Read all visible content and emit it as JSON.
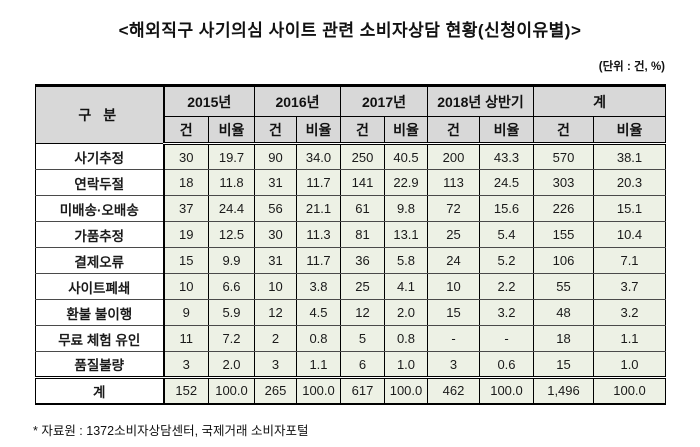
{
  "title": "<해외직구 사기의심 사이트 관련 소비자상담 현황(신청이유별)>",
  "unit_note": "(단위 : 건, %)",
  "footnote": "* 자료원 : 1372소비자상담센터, 국제거래 소비자포털",
  "table": {
    "corner_header": "구 분",
    "col_groups": [
      "2015년",
      "2016년",
      "2017년",
      "2018년 상반기",
      "계"
    ],
    "sub_headers": [
      "건",
      "비율"
    ],
    "rows": [
      {
        "label": "사기추정",
        "values": [
          "30",
          "19.7",
          "90",
          "34.0",
          "250",
          "40.5",
          "200",
          "43.3",
          "570",
          "38.1"
        ],
        "is_total": false
      },
      {
        "label": "연락두절",
        "values": [
          "18",
          "11.8",
          "31",
          "11.7",
          "141",
          "22.9",
          "113",
          "24.5",
          "303",
          "20.3"
        ],
        "is_total": false
      },
      {
        "label": "미배송·오배송",
        "values": [
          "37",
          "24.4",
          "56",
          "21.1",
          "61",
          "9.8",
          "72",
          "15.6",
          "226",
          "15.1"
        ],
        "is_total": false
      },
      {
        "label": "가품추정",
        "values": [
          "19",
          "12.5",
          "30",
          "11.3",
          "81",
          "13.1",
          "25",
          "5.4",
          "155",
          "10.4"
        ],
        "is_total": false
      },
      {
        "label": "결제오류",
        "values": [
          "15",
          "9.9",
          "31",
          "11.7",
          "36",
          "5.8",
          "24",
          "5.2",
          "106",
          "7.1"
        ],
        "is_total": false
      },
      {
        "label": "사이트폐쇄",
        "values": [
          "10",
          "6.6",
          "10",
          "3.8",
          "25",
          "4.1",
          "10",
          "2.2",
          "55",
          "3.7"
        ],
        "is_total": false
      },
      {
        "label": "환불 불이행",
        "values": [
          "9",
          "5.9",
          "12",
          "4.5",
          "12",
          "2.0",
          "15",
          "3.2",
          "48",
          "3.2"
        ],
        "is_total": false
      },
      {
        "label": "무료 체험 유인",
        "values": [
          "11",
          "7.2",
          "2",
          "0.8",
          "5",
          "0.8",
          "-",
          "-",
          "18",
          "1.1"
        ],
        "is_total": false
      },
      {
        "label": "품질불량",
        "values": [
          "3",
          "2.0",
          "3",
          "1.1",
          "6",
          "1.0",
          "3",
          "0.6",
          "15",
          "1.0"
        ],
        "is_total": false
      },
      {
        "label": "계",
        "values": [
          "152",
          "100.0",
          "265",
          "100.0",
          "617",
          "100.0",
          "462",
          "100.0",
          "1,496",
          "100.0"
        ],
        "is_total": true
      }
    ]
  },
  "colors": {
    "header_bg": "#d8d8d8",
    "data_cell_bg": "#edf1e5",
    "border": "#000000",
    "text": "#111111"
  }
}
